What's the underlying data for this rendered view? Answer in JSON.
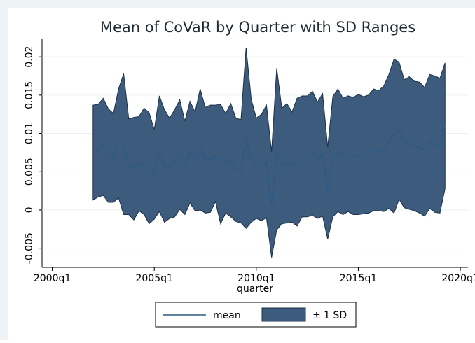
{
  "chart_data": {
    "type": "range-area-line",
    "title": "Mean of CoVaR by Quarter with SD Ranges",
    "xlabel": "quarter",
    "x": [
      168,
      169,
      170,
      171,
      172,
      173,
      174,
      175,
      176,
      177,
      178,
      179,
      180,
      181,
      182,
      183,
      184,
      185,
      186,
      187,
      188,
      189,
      190,
      191,
      192,
      193,
      194,
      195,
      196,
      197,
      198,
      199,
      200,
      201,
      202,
      203,
      204,
      205,
      206,
      207,
      208,
      209,
      210,
      211,
      212,
      213,
      214,
      215,
      216,
      217,
      218,
      219,
      220,
      221,
      222,
      223,
      224,
      225,
      226,
      227,
      228,
      229,
      230,
      231,
      232,
      233,
      234,
      235,
      236,
      237
    ],
    "series": [
      {
        "name": "mean",
        "color": "#2b5a86",
        "values": [
          0.0075,
          0.0078,
          0.0083,
          0.007,
          0.0067,
          0.0087,
          0.0087,
          0.0057,
          0.0055,
          0.006,
          0.0063,
          0.0056,
          0.0048,
          0.0073,
          0.0058,
          0.0056,
          0.0062,
          0.0073,
          0.0057,
          0.0076,
          0.0066,
          0.008,
          0.0066,
          0.0067,
          0.0071,
          0.0061,
          0.0063,
          0.0065,
          0.0052,
          0.0052,
          0.0094,
          0.0064,
          0.0056,
          0.0056,
          0.0062,
          0.0006,
          0.0079,
          0.0058,
          0.0062,
          0.0059,
          0.0063,
          0.0071,
          0.0071,
          0.0074,
          0.0066,
          0.0072,
          0.0026,
          0.007,
          0.0074,
          0.007,
          0.0072,
          0.007,
          0.0072,
          0.0071,
          0.0073,
          0.0077,
          0.0076,
          0.0079,
          0.009,
          0.0099,
          0.0105,
          0.0087,
          0.0087,
          0.0084,
          0.0082,
          0.0078,
          0.0089,
          0.0086,
          0.0084,
          0.0111
        ]
      },
      {
        "name": "± 1 SD",
        "color": "#3d5b7c",
        "upper": [
          0.0137,
          0.0138,
          0.0146,
          0.0132,
          0.0126,
          0.0158,
          0.0178,
          0.0119,
          0.0121,
          0.0122,
          0.0133,
          0.0127,
          0.0105,
          0.0149,
          0.0131,
          0.012,
          0.0131,
          0.0144,
          0.0116,
          0.0142,
          0.0128,
          0.0158,
          0.0134,
          0.0137,
          0.0137,
          0.0138,
          0.0126,
          0.0139,
          0.012,
          0.0118,
          0.0212,
          0.0145,
          0.012,
          0.0125,
          0.0137,
          0.0076,
          0.0185,
          0.0133,
          0.0139,
          0.0128,
          0.0146,
          0.0149,
          0.0149,
          0.0155,
          0.0141,
          0.0152,
          0.0082,
          0.0148,
          0.0158,
          0.0146,
          0.0149,
          0.0147,
          0.0151,
          0.0148,
          0.015,
          0.0158,
          0.0156,
          0.0162,
          0.0177,
          0.0197,
          0.0193,
          0.017,
          0.0174,
          0.0168,
          0.0167,
          0.016,
          0.0177,
          0.0175,
          0.0172,
          0.0192
        ],
        "lower": [
          0.0013,
          0.0017,
          0.0019,
          0.001,
          0.001,
          0.0016,
          -0.0006,
          -0.0006,
          -0.0013,
          -0.0001,
          -0.0006,
          -0.0018,
          -0.0012,
          -0.0002,
          -0.0016,
          -0.0011,
          -0.0009,
          0.0001,
          -0.0006,
          0.0009,
          -0.0001,
          0.0,
          -0.0004,
          -0.0003,
          0.0011,
          -0.0018,
          -0.0004,
          -0.0009,
          -0.0015,
          -0.0017,
          -0.0024,
          -0.0016,
          -0.0011,
          -0.0014,
          -0.001,
          -0.0062,
          -0.0026,
          -0.0018,
          -0.0017,
          -0.0016,
          -0.0021,
          -0.0009,
          -0.0009,
          -0.0007,
          -0.0011,
          -0.0008,
          -0.0038,
          -0.0009,
          -0.0002,
          -0.0006,
          -0.0002,
          -0.0006,
          -0.0006,
          -0.0005,
          -0.0004,
          -0.0001,
          -0.0001,
          -0.0002,
          0.0002,
          -0.0004,
          0.0014,
          0.0003,
          0.0001,
          -0.0001,
          -0.0004,
          -0.0008,
          0.0002,
          -0.0003,
          -0.0004,
          0.0028
        ]
      }
    ],
    "xlim": [
      158,
      241.5
    ],
    "xticks": [
      {
        "value": 160,
        "label": "2000q1"
      },
      {
        "value": 180,
        "label": "2005q1"
      },
      {
        "value": 200,
        "label": "2010q1"
      },
      {
        "value": 220,
        "label": "2015q1"
      },
      {
        "value": 240,
        "label": "2020q1"
      }
    ],
    "ylim": [
      -0.0075,
      0.0223
    ],
    "yticks": [
      -0.005,
      0,
      0.005,
      0.01,
      0.015,
      0.02
    ],
    "grid": true
  }
}
